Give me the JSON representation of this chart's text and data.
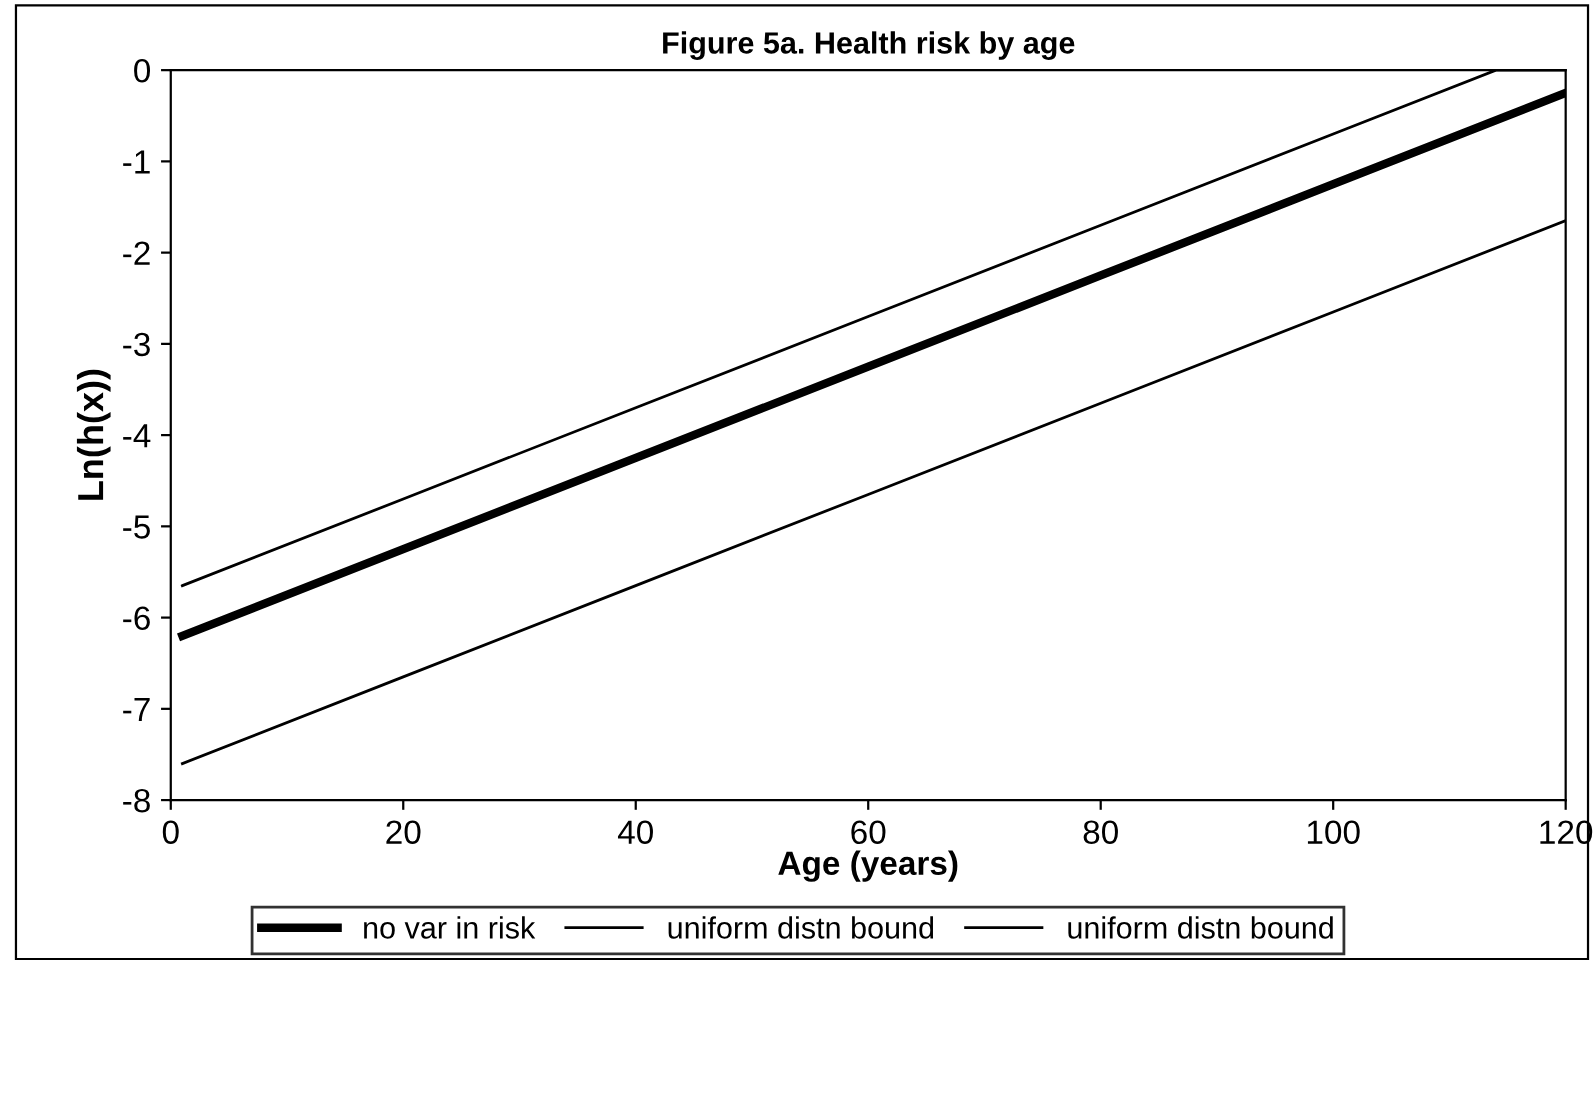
{
  "chart_data": {
    "type": "line",
    "title": "Figure 5a. Health risk by age",
    "xlabel": "Age (years)",
    "ylabel": "Ln(h(x))",
    "xlim": [
      0,
      120
    ],
    "xticks": [
      0,
      20,
      40,
      60,
      80,
      100,
      120
    ],
    "ylim": [
      -8,
      0
    ],
    "yticks": [
      -8,
      -7,
      -6,
      -5,
      -4,
      -3,
      -2,
      -1,
      0
    ],
    "grid": false,
    "legend": "bottom",
    "marker": "none",
    "line_style": "solid",
    "series": [
      {
        "name": "no var in risk",
        "color": "#000000",
        "x": [
          1,
          20,
          40,
          60,
          80,
          100,
          120
        ],
        "values": [
          -6.2,
          -5.25,
          -4.25,
          -3.25,
          -2.25,
          -1.25,
          -0.25
        ]
      },
      {
        "name": "uniform distn bound",
        "color": "#000000",
        "x": [
          1,
          20,
          40,
          60,
          80,
          100,
          114,
          120
        ],
        "values": [
          -5.65,
          -4.7,
          -3.7,
          -2.7,
          -1.7,
          -0.7,
          0,
          0
        ]
      },
      {
        "name": "uniform distn bound",
        "color": "#000000",
        "x": [
          1,
          20,
          40,
          60,
          80,
          100,
          120
        ],
        "values": [
          -7.6,
          -6.65,
          -5.65,
          -4.65,
          -3.65,
          -2.65,
          -1.65
        ]
      }
    ]
  }
}
